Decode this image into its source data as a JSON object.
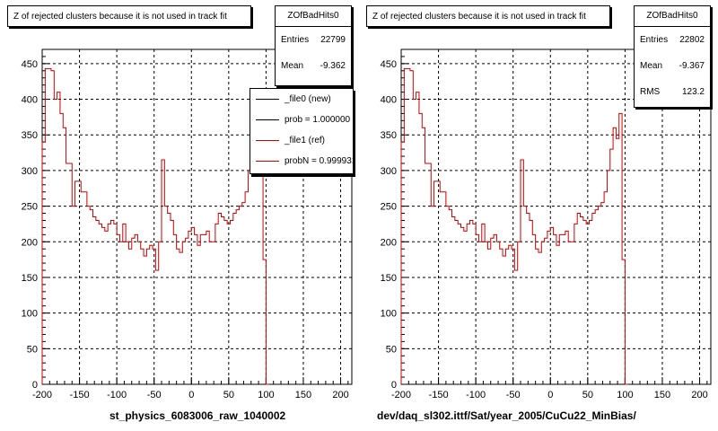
{
  "chart_data": [
    {
      "type": "histogram",
      "title": "Z of rejected clusters  because it is not used in track fit",
      "xlabel": "st_physics_6083006_raw_1040002",
      "ylabel": "",
      "xlim": [
        -200,
        215
      ],
      "ylim": [
        0,
        470
      ],
      "x_ticks": [
        -200,
        -150,
        -100,
        -50,
        0,
        50,
        100,
        150,
        200
      ],
      "y_ticks": [
        0,
        50,
        100,
        150,
        200,
        250,
        300,
        350,
        400,
        450
      ],
      "grid": true,
      "bin_width": 4,
      "bin_start": -200,
      "series": [
        {
          "name": "_file1 (ref)",
          "color": "#cc0000",
          "values": [
            340,
            443,
            443,
            440,
            400,
            410,
            380,
            360,
            310,
            310,
            250,
            285,
            285,
            270,
            270,
            250,
            245,
            235,
            230,
            225,
            220,
            215,
            225,
            230,
            225,
            210,
            200,
            225,
            200,
            190,
            205,
            210,
            200,
            190,
            180,
            190,
            195,
            190,
            160,
            200,
            315,
            250,
            240,
            230,
            210,
            190,
            185,
            200,
            205,
            215,
            220,
            210,
            195,
            210,
            210,
            215,
            200,
            200,
            225,
            240,
            235,
            230,
            225,
            230,
            240,
            245,
            250,
            255,
            270,
            300,
            330,
            360,
            330,
            300,
            175,
            0
          ]
        }
      ],
      "stats": {
        "name": "ZOfBadHits0",
        "entries": "22799",
        "mean": "-9.362"
      },
      "legend": [
        {
          "label": "_file0 (new)",
          "color": "#000000"
        },
        {
          "label": "prob = 1.000000",
          "color": "#000000"
        },
        {
          "label": "_file1 (ref)",
          "color": "#cc0000"
        },
        {
          "label": "probN = 0.999931",
          "color": "#cc0000"
        }
      ]
    },
    {
      "type": "histogram",
      "title": "Z of rejected clusters  because it is not used in track fit",
      "xlabel": "dev/daq_sl302.ittf/Sat/year_2005/CuCu22_MinBias/",
      "ylabel": "",
      "xlim": [
        -200,
        215
      ],
      "ylim": [
        0,
        470
      ],
      "x_ticks": [
        -200,
        -150,
        -100,
        -50,
        0,
        50,
        100,
        150,
        200
      ],
      "y_ticks": [
        0,
        50,
        100,
        150,
        200,
        250,
        300,
        350,
        400,
        450
      ],
      "grid": true,
      "bin_width": 4,
      "bin_start": -200,
      "series": [
        {
          "name": "",
          "color": "#cc0000",
          "values": [
            340,
            443,
            443,
            440,
            400,
            410,
            380,
            360,
            310,
            310,
            250,
            285,
            285,
            270,
            270,
            250,
            245,
            235,
            230,
            225,
            220,
            215,
            225,
            230,
            225,
            210,
            200,
            225,
            200,
            190,
            205,
            210,
            200,
            190,
            180,
            190,
            195,
            190,
            160,
            200,
            315,
            250,
            240,
            230,
            210,
            190,
            185,
            200,
            205,
            215,
            220,
            210,
            195,
            210,
            210,
            215,
            200,
            200,
            225,
            240,
            235,
            230,
            225,
            230,
            240,
            245,
            250,
            255,
            270,
            300,
            330,
            360,
            345,
            380,
            175,
            0
          ]
        }
      ],
      "stats": {
        "name": "ZOfBadHits0",
        "entries": "22802",
        "mean": "-9.367",
        "rms": "123.2"
      }
    }
  ],
  "labels": {
    "entries": "Entries",
    "mean": "Mean",
    "rms": "RMS"
  }
}
